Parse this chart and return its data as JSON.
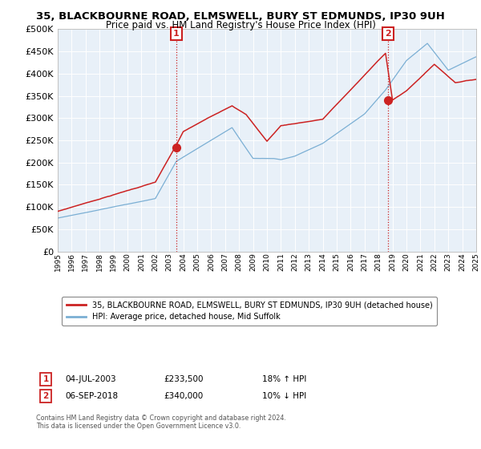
{
  "title": "35, BLACKBOURNE ROAD, ELMSWELL, BURY ST EDMUNDS, IP30 9UH",
  "subtitle": "Price paid vs. HM Land Registry's House Price Index (HPI)",
  "legend_line1": "35, BLACKBOURNE ROAD, ELMSWELL, BURY ST EDMUNDS, IP30 9UH (detached house)",
  "legend_line2": "HPI: Average price, detached house, Mid Suffolk",
  "annotation1_date": "04-JUL-2003",
  "annotation1_price": "£233,500",
  "annotation1_hpi": "18% ↑ HPI",
  "annotation2_date": "06-SEP-2018",
  "annotation2_price": "£340,000",
  "annotation2_hpi": "10% ↓ HPI",
  "footer": "Contains HM Land Registry data © Crown copyright and database right 2024.\nThis data is licensed under the Open Government Licence v3.0.",
  "hpi_color": "#7bafd4",
  "price_color": "#cc2222",
  "vline_color": "#cc2222",
  "annotation_box_color": "#cc2222",
  "bg_color": "#e8f0f8",
  "ylim": [
    0,
    500000
  ],
  "yticks": [
    0,
    50000,
    100000,
    150000,
    200000,
    250000,
    300000,
    350000,
    400000,
    450000,
    500000
  ],
  "sale1_year": 2003.5,
  "sale1_price": 233500,
  "sale2_year": 2018.667,
  "sale2_price": 340000
}
